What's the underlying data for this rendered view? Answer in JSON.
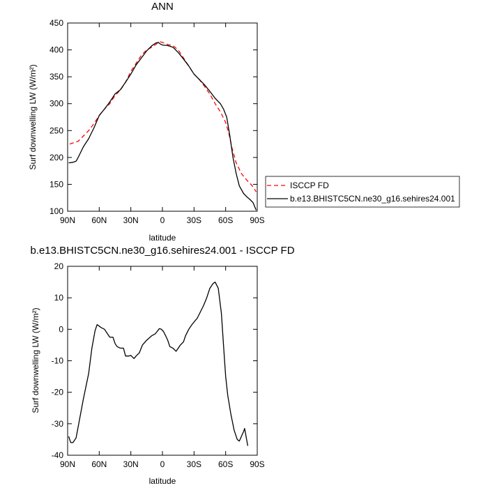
{
  "chart_data": [
    {
      "type": "line",
      "title": "ANN",
      "xlabel": "latitude",
      "ylabel": "Surf downwelling LW (W/m²)",
      "xlim": [
        90,
        -90
      ],
      "ylim": [
        100,
        450
      ],
      "x_ticks": [
        {
          "value": 90,
          "label": "90N"
        },
        {
          "value": 60,
          "label": "60N"
        },
        {
          "value": 30,
          "label": "30N"
        },
        {
          "value": 0,
          "label": "0"
        },
        {
          "value": -30,
          "label": "30S"
        },
        {
          "value": -60,
          "label": "60S"
        },
        {
          "value": -90,
          "label": "90S"
        }
      ],
      "y_ticks": [
        100,
        150,
        200,
        250,
        300,
        350,
        400,
        450
      ],
      "grid": false,
      "legend_position": "right",
      "series": [
        {
          "name": "ISCCP FD",
          "color": "#ff0000",
          "dash": "dashed",
          "points": [
            [
              88,
              225
            ],
            [
              80,
              230
            ],
            [
              75,
              240
            ],
            [
              70,
              250
            ],
            [
              65,
              263
            ],
            [
              60,
              278
            ],
            [
              55,
              290
            ],
            [
              50,
              300
            ],
            [
              45,
              315
            ],
            [
              40,
              325
            ],
            [
              35,
              340
            ],
            [
              30,
              360
            ],
            [
              25,
              375
            ],
            [
              20,
              390
            ],
            [
              15,
              400
            ],
            [
              10,
              405
            ],
            [
              5,
              412
            ],
            [
              2,
              415
            ],
            [
              0,
              414
            ],
            [
              -5,
              410
            ],
            [
              -10,
              408
            ],
            [
              -15,
              400
            ],
            [
              -20,
              385
            ],
            [
              -25,
              370
            ],
            [
              -30,
              355
            ],
            [
              -35,
              345
            ],
            [
              -40,
              332
            ],
            [
              -45,
              318
            ],
            [
              -50,
              300
            ],
            [
              -55,
              285
            ],
            [
              -60,
              265
            ],
            [
              -63,
              245
            ],
            [
              -66,
              218
            ],
            [
              -70,
              190
            ],
            [
              -75,
              170
            ],
            [
              -80,
              158
            ],
            [
              -85,
              148
            ],
            [
              -89,
              136
            ]
          ]
        },
        {
          "name": "b.e13.BHISTC5CN.ne30_g16.sehires24.001",
          "color": "#000000",
          "dash": "solid",
          "points": [
            [
              89,
              190
            ],
            [
              85,
              191
            ],
            [
              82,
              193
            ],
            [
              80,
              200
            ],
            [
              75,
              220
            ],
            [
              70,
              235
            ],
            [
              65,
              255
            ],
            [
              60,
              278
            ],
            [
              55,
              290
            ],
            [
              50,
              303
            ],
            [
              45,
              318
            ],
            [
              40,
              326
            ],
            [
              35,
              340
            ],
            [
              30,
              355
            ],
            [
              25,
              372
            ],
            [
              20,
              385
            ],
            [
              15,
              398
            ],
            [
              10,
              408
            ],
            [
              6,
              413
            ],
            [
              4,
              414
            ],
            [
              2,
              411
            ],
            [
              0,
              409
            ],
            [
              -5,
              408
            ],
            [
              -10,
              405
            ],
            [
              -15,
              395
            ],
            [
              -20,
              383
            ],
            [
              -25,
              370
            ],
            [
              -30,
              355
            ],
            [
              -35,
              345
            ],
            [
              -40,
              335
            ],
            [
              -45,
              323
            ],
            [
              -50,
              310
            ],
            [
              -55,
              300
            ],
            [
              -58,
              290
            ],
            [
              -61,
              275
            ],
            [
              -64,
              240
            ],
            [
              -67,
              200
            ],
            [
              -70,
              170
            ],
            [
              -73,
              147
            ],
            [
              -77,
              133
            ],
            [
              -80,
              127
            ],
            [
              -83,
              122
            ],
            [
              -86,
              116
            ],
            [
              -89,
              102
            ]
          ]
        }
      ]
    },
    {
      "type": "line",
      "title": "b.e13.BHISTC5CN.ne30_g16.sehires24.001 - ISCCP FD",
      "xlabel": "latitude",
      "ylabel": "Surf downwelling LW (W/m²)",
      "xlim": [
        90,
        -90
      ],
      "ylim": [
        -40,
        20
      ],
      "x_ticks": [
        {
          "value": 90,
          "label": "90N"
        },
        {
          "value": 60,
          "label": "60N"
        },
        {
          "value": 30,
          "label": "30N"
        },
        {
          "value": 0,
          "label": "0"
        },
        {
          "value": -30,
          "label": "30S"
        },
        {
          "value": -60,
          "label": "60S"
        },
        {
          "value": -90,
          "label": "90S"
        }
      ],
      "y_ticks": [
        -40,
        -30,
        -20,
        -10,
        0,
        10,
        20
      ],
      "grid": false,
      "series": [
        {
          "color": "#000000",
          "dash": "solid",
          "points": [
            [
              89,
              -34
            ],
            [
              87,
              -36
            ],
            [
              85,
              -36
            ],
            [
              82,
              -34.5
            ],
            [
              80,
              -31
            ],
            [
              75,
              -22
            ],
            [
              70,
              -14
            ],
            [
              67,
              -6
            ],
            [
              64,
              -0.5
            ],
            [
              62,
              1.5
            ],
            [
              60,
              1
            ],
            [
              58,
              0.5
            ],
            [
              55,
              0
            ],
            [
              53,
              -1
            ],
            [
              50,
              -2.5
            ],
            [
              47,
              -2.5
            ],
            [
              45,
              -4.5
            ],
            [
              43,
              -5.5
            ],
            [
              40,
              -6
            ],
            [
              37,
              -6
            ],
            [
              35,
              -8.5
            ],
            [
              32,
              -8.5
            ],
            [
              30,
              -8.3
            ],
            [
              27,
              -9.3
            ],
            [
              25,
              -8.5
            ],
            [
              22,
              -7.5
            ],
            [
              19,
              -5
            ],
            [
              15,
              -3.5
            ],
            [
              10,
              -2
            ],
            [
              7,
              -1.5
            ],
            [
              5,
              -0.7
            ],
            [
              3,
              0.2
            ],
            [
              1,
              0
            ],
            [
              -1,
              -0.7
            ],
            [
              -3,
              -2
            ],
            [
              -5,
              -3.5
            ],
            [
              -7,
              -5.5
            ],
            [
              -10,
              -6
            ],
            [
              -13,
              -7
            ],
            [
              -15,
              -6
            ],
            [
              -17,
              -5
            ],
            [
              -20,
              -4
            ],
            [
              -22,
              -2
            ],
            [
              -25,
              0
            ],
            [
              -28,
              1.5
            ],
            [
              -31,
              2.7
            ],
            [
              -33,
              3.5
            ],
            [
              -36,
              5.5
            ],
            [
              -39,
              7.5
            ],
            [
              -42,
              10
            ],
            [
              -45,
              13
            ],
            [
              -48,
              14.5
            ],
            [
              -50,
              15
            ],
            [
              -53,
              13
            ],
            [
              -56,
              5
            ],
            [
              -58,
              -5
            ],
            [
              -60,
              -15
            ],
            [
              -62,
              -21
            ],
            [
              -65,
              -27
            ],
            [
              -68,
              -32
            ],
            [
              -71,
              -35
            ],
            [
              -73,
              -35.5
            ],
            [
              -75,
              -34
            ],
            [
              -77,
              -32.5
            ],
            [
              -78,
              -31.5
            ],
            [
              -81,
              -37
            ]
          ]
        }
      ]
    }
  ]
}
